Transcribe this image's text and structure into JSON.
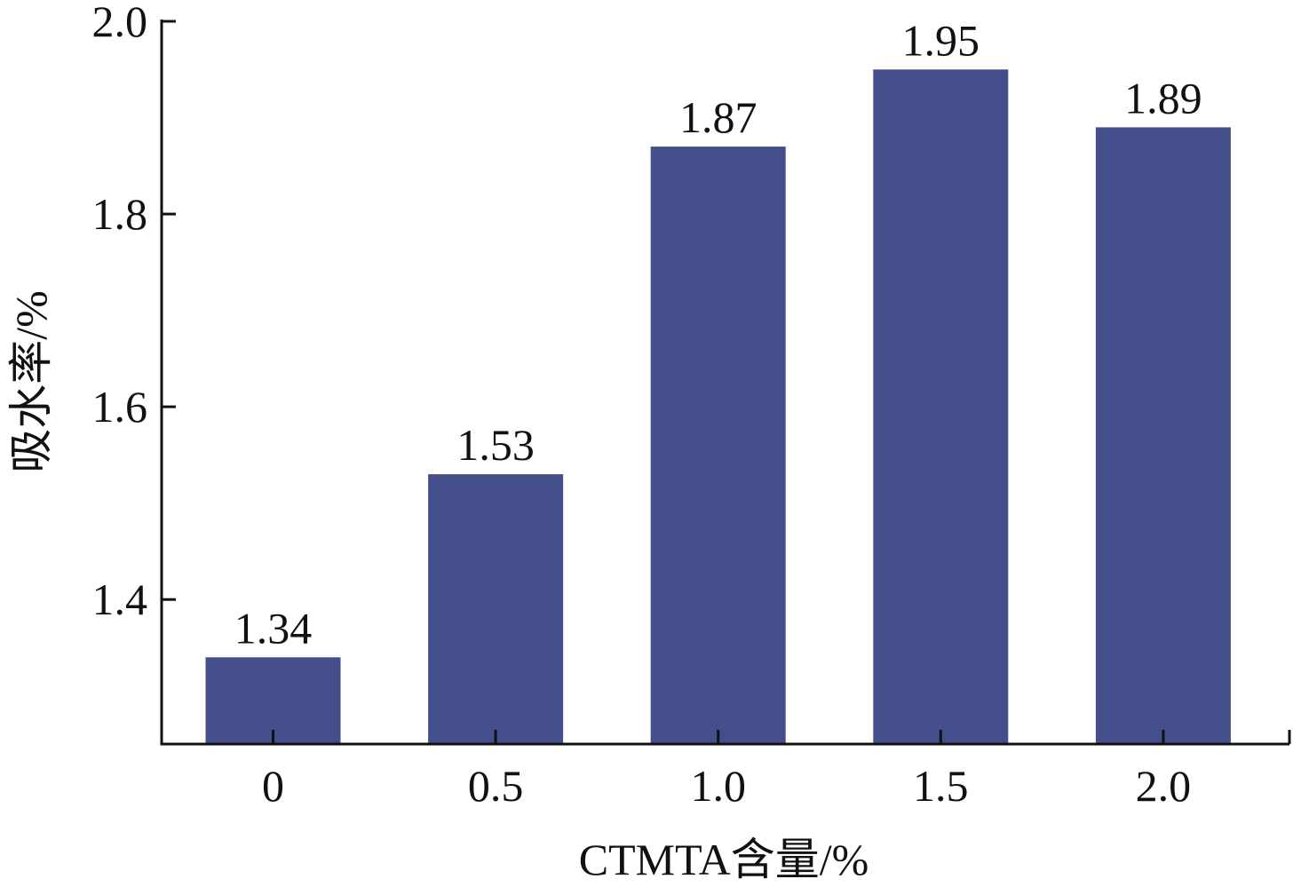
{
  "chart_data": {
    "type": "bar",
    "categories": [
      "0",
      "0.5",
      "1.0",
      "1.5",
      "2.0"
    ],
    "values": [
      1.34,
      1.53,
      1.87,
      1.95,
      1.89
    ],
    "value_labels": [
      "1.34",
      "1.53",
      "1.87",
      "1.95",
      "1.89"
    ],
    "title": "",
    "xlabel": "CTMTA含量/%",
    "ylabel": "吸水率/%",
    "ylim": [
      1.25,
      2.0
    ],
    "yticks": [
      1.4,
      1.6,
      1.8,
      2.0
    ],
    "ytick_labels": [
      "1.4",
      "1.6",
      "1.8",
      "2.0"
    ],
    "grid": false,
    "legend": "none",
    "colors": {
      "bar": "#444e8b",
      "axis": "#111111"
    }
  }
}
